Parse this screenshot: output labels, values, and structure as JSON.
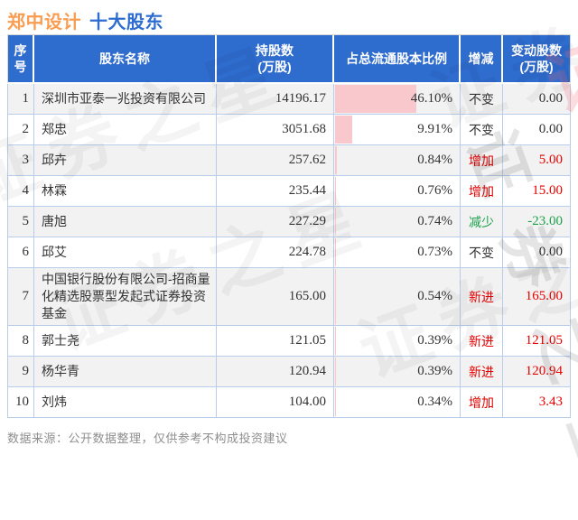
{
  "title": {
    "stock": "郑中设计",
    "suffix": "十大股东"
  },
  "chart_data": {
    "type": "table",
    "title": "郑中设计 十大股东",
    "bar_scale_max": 71,
    "columns": [
      {
        "key": "rank",
        "label": "序号"
      },
      {
        "key": "name",
        "label": "股东名称"
      },
      {
        "key": "shares",
        "label": "持股数",
        "label2": "(万股)"
      },
      {
        "key": "ratio",
        "label": "占总流通股本比例"
      },
      {
        "key": "change",
        "label": "增减"
      },
      {
        "key": "delta",
        "label": "变动股数",
        "label2": "(万股)"
      }
    ],
    "rows": [
      {
        "rank": "1",
        "name": "深圳市亚泰一兆投资有限公司",
        "shares": "14196.17",
        "ratio": "46.10%",
        "ratio_num": 46.1,
        "change": "不变",
        "change_type": "same",
        "delta": "0.00"
      },
      {
        "rank": "2",
        "name": "郑忠",
        "shares": "3051.68",
        "ratio": "9.91%",
        "ratio_num": 9.91,
        "change": "不变",
        "change_type": "same",
        "delta": "0.00"
      },
      {
        "rank": "3",
        "name": "邱卉",
        "shares": "257.62",
        "ratio": "0.84%",
        "ratio_num": 0.84,
        "change": "增加",
        "change_type": "up",
        "delta": "5.00"
      },
      {
        "rank": "4",
        "name": "林霖",
        "shares": "235.44",
        "ratio": "0.76%",
        "ratio_num": 0.76,
        "change": "增加",
        "change_type": "up",
        "delta": "15.00"
      },
      {
        "rank": "5",
        "name": "唐旭",
        "shares": "227.29",
        "ratio": "0.74%",
        "ratio_num": 0.74,
        "change": "减少",
        "change_type": "down",
        "delta": "-23.00"
      },
      {
        "rank": "6",
        "name": "邱艾",
        "shares": "224.78",
        "ratio": "0.73%",
        "ratio_num": 0.73,
        "change": "不变",
        "change_type": "same",
        "delta": "0.00"
      },
      {
        "rank": "7",
        "name": "中国银行股份有限公司-招商量化精选股票型发起式证券投资基金",
        "shares": "165.00",
        "ratio": "0.54%",
        "ratio_num": 0.54,
        "change": "新进",
        "change_type": "new",
        "delta": "165.00"
      },
      {
        "rank": "8",
        "name": "郭士尧",
        "shares": "121.05",
        "ratio": "0.39%",
        "ratio_num": 0.39,
        "change": "新进",
        "change_type": "new",
        "delta": "121.05"
      },
      {
        "rank": "9",
        "name": "杨华青",
        "shares": "120.94",
        "ratio": "0.39%",
        "ratio_num": 0.39,
        "change": "新进",
        "change_type": "new",
        "delta": "120.94"
      },
      {
        "rank": "10",
        "name": "刘炜",
        "shares": "104.00",
        "ratio": "0.34%",
        "ratio_num": 0.34,
        "change": "增加",
        "change_type": "up",
        "delta": "3.43"
      }
    ]
  },
  "footer": {
    "text": "数据来源：公开数据整理，仅供参考不构成投资建议"
  },
  "watermark": {
    "text": "证券之星"
  },
  "colors": {
    "header_bg": "#2e6cce",
    "title_stock_orange": "#f99d52",
    "title_suffix_blue": "#2e6cd0",
    "up_red": "#e60000",
    "down_green": "#1ca24a",
    "bar_pink": "#f9c8cc",
    "zebra_gray": "#f2f2f2",
    "grid_blue": "#b7cde9"
  }
}
